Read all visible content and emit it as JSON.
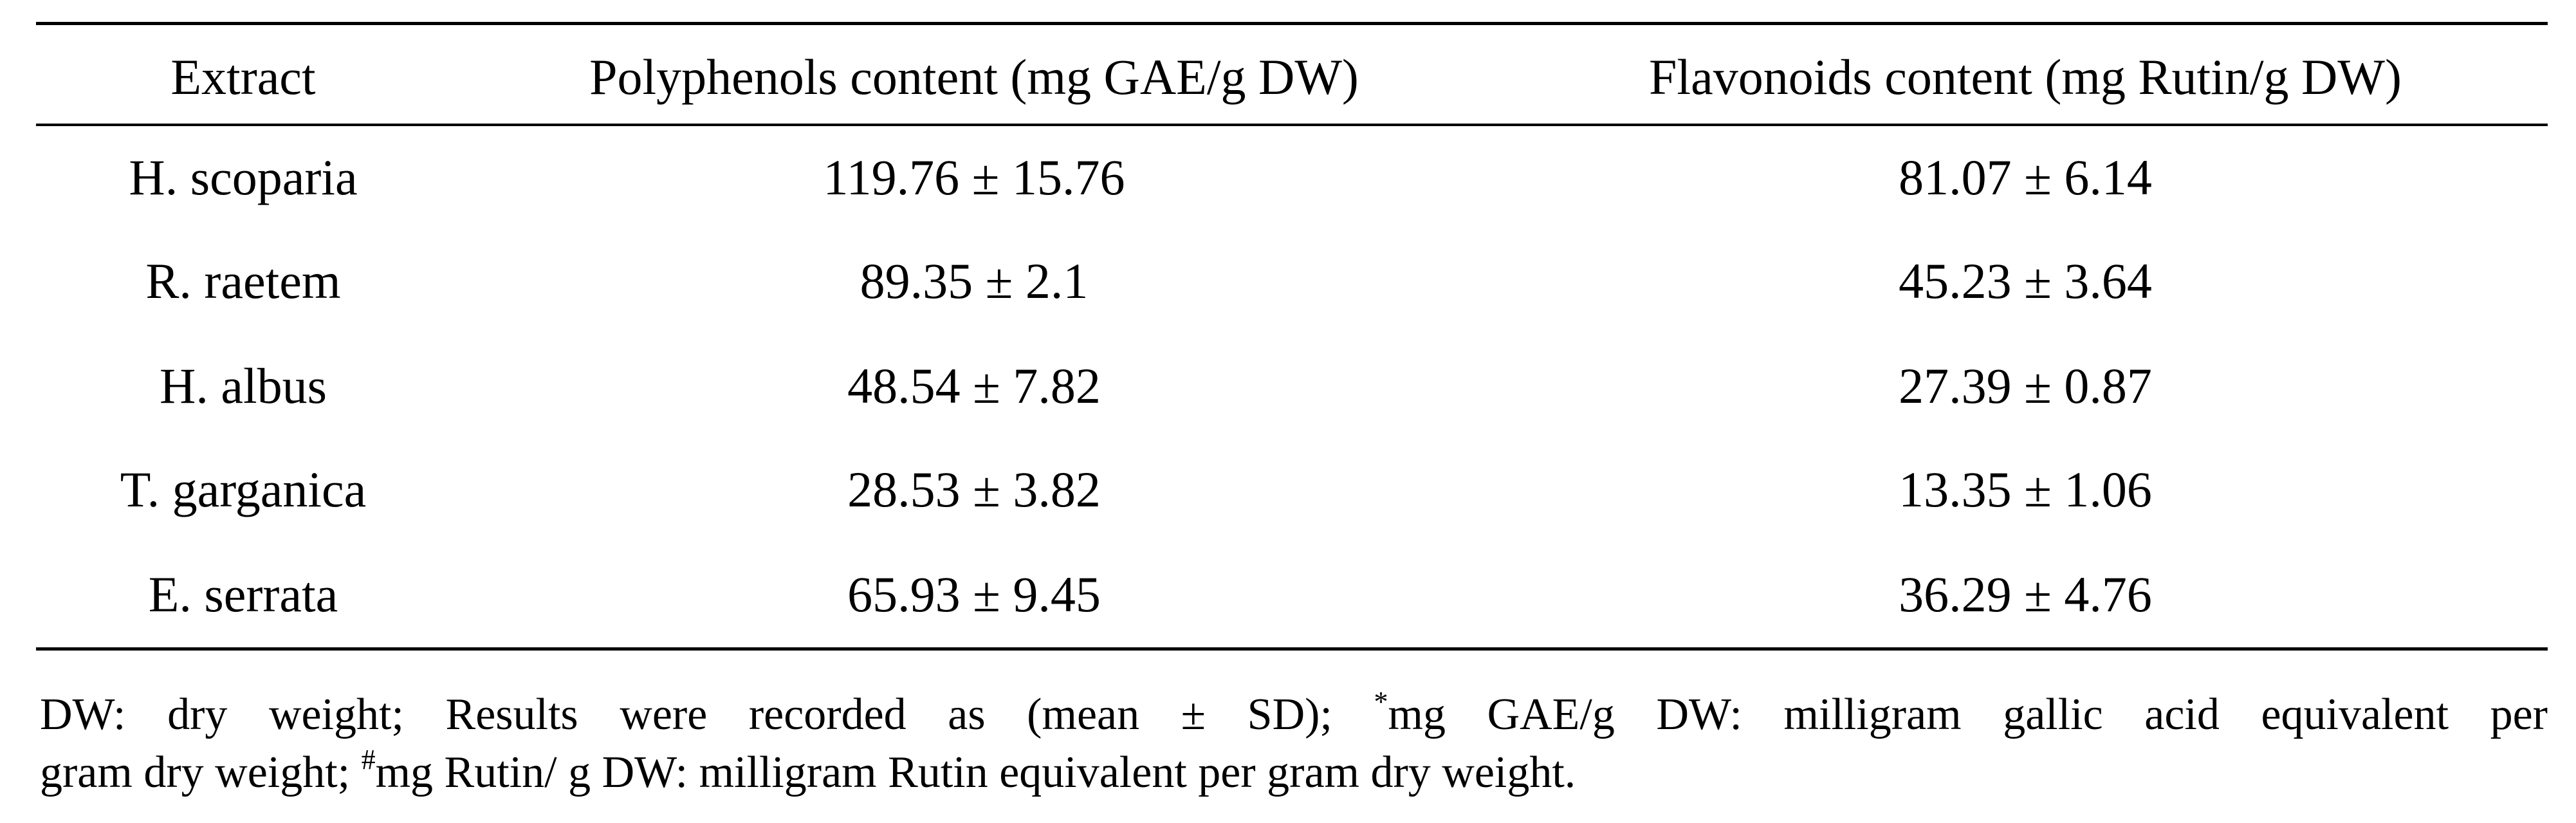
{
  "table": {
    "header": [
      "Extract",
      "Polyphenols content (mg GAE/g DW)",
      "Flavonoids content (mg Rutin/g DW)"
    ],
    "rows": [
      [
        "H. scoparia",
        "119.76 ± 15.76",
        "81.07 ± 6.14"
      ],
      [
        "R. raetem",
        "89.35 ± 2.1",
        "45.23 ± 3.64"
      ],
      [
        "H. albus",
        "48.54 ± 7.82",
        "27.39 ± 0.87"
      ],
      [
        "T. garganica",
        "28.53 ± 3.82",
        "13.35 ± 1.06"
      ],
      [
        "E. serrata",
        "65.93 ± 9.45",
        "36.29 ± 4.76"
      ]
    ]
  },
  "footnote": {
    "lines": [
      [
        "DW: dry weight; Results were recorded as (mean ± SD); ",
        "*",
        "mg GAE/g DW: milligram gallic acid equivalent per"
      ],
      [
        "gram dry weight; ",
        "#",
        "mg Rutin/ g DW: milligram Rutin equivalent per gram dry weight."
      ]
    ]
  }
}
